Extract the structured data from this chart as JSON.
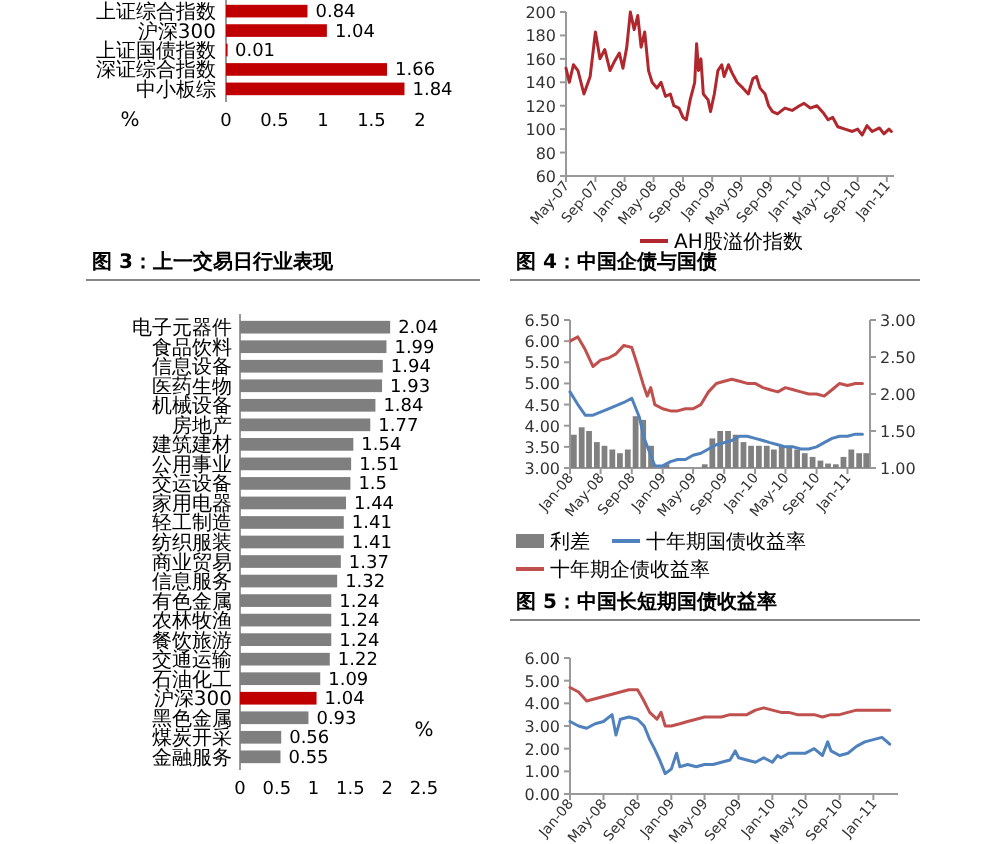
{
  "chart_data": [
    {
      "type": "bar",
      "orientation": "horizontal",
      "categories": [
        "上证综合指数",
        "沪深300",
        "上证国债指数",
        "深证综合指数",
        "中小板综"
      ],
      "values": [
        0.84,
        1.04,
        0.01,
        1.66,
        1.84
      ],
      "color": "#c00000",
      "xlim": [
        0,
        2
      ],
      "xticks": [
        0,
        0.5,
        1,
        1.5,
        2
      ],
      "xlabel": "%",
      "data_labels": true
    },
    {
      "type": "line",
      "xlim": [
        "2007-05-01",
        "2011-01-31"
      ],
      "xticks": [
        {
          "value": "2007-05",
          "label": "May-07"
        },
        {
          "value": "2007-09",
          "label": "Sep-07"
        },
        {
          "value": "2008-01",
          "label": "Jan-08"
        },
        {
          "value": "2008-05",
          "label": "May-08"
        },
        {
          "value": "2008-09",
          "label": "Sep-08"
        },
        {
          "value": "2009-01",
          "label": "Jan-09"
        },
        {
          "value": "2009-05",
          "label": "May-09"
        },
        {
          "value": "2009-09",
          "label": "Sep-09"
        },
        {
          "value": "2010-01",
          "label": "Jan-10"
        },
        {
          "value": "2010-05",
          "label": "May-10"
        },
        {
          "value": "2010-09",
          "label": "Sep-10"
        },
        {
          "value": "2011-01",
          "label": "Jan-11"
        }
      ],
      "ylim": [
        60,
        200
      ],
      "yticks": [
        60,
        80,
        100,
        120,
        140,
        160,
        180,
        200
      ],
      "legend": "bottom",
      "series": [
        {
          "name": "AH股溢价指数",
          "color": "#b0282e",
          "x": [
            "2007-05-01",
            "2007-05-15",
            "2007-06-01",
            "2007-06-20",
            "2007-07-15",
            "2007-08-10",
            "2007-09-01",
            "2007-09-20",
            "2007-10-10",
            "2007-11-01",
            "2007-11-20",
            "2007-12-10",
            "2007-12-25",
            "2008-01-10",
            "2008-01-25",
            "2008-02-10",
            "2008-02-25",
            "2008-03-10",
            "2008-03-25",
            "2008-04-10",
            "2008-04-25",
            "2008-05-15",
            "2008-06-01",
            "2008-06-20",
            "2008-07-10",
            "2008-07-25",
            "2008-08-15",
            "2008-09-01",
            "2008-09-15",
            "2008-10-01",
            "2008-10-20",
            "2008-10-28",
            "2008-11-05",
            "2008-11-15",
            "2008-11-25",
            "2008-12-15",
            "2008-12-25",
            "2009-01-10",
            "2009-01-25",
            "2009-02-10",
            "2009-02-20",
            "2009-03-10",
            "2009-03-25",
            "2009-04-15",
            "2009-05-10",
            "2009-06-01",
            "2009-06-20",
            "2009-07-05",
            "2009-07-20",
            "2009-08-10",
            "2009-08-25",
            "2009-09-10",
            "2009-10-01",
            "2009-11-01",
            "2009-12-01",
            "2010-01-01",
            "2010-01-20",
            "2010-02-15",
            "2010-03-15",
            "2010-04-10",
            "2010-05-01",
            "2010-05-20",
            "2010-06-10",
            "2010-07-10",
            "2010-08-10",
            "2010-09-01",
            "2010-09-20",
            "2010-10-10",
            "2010-11-01",
            "2010-12-01",
            "2010-12-20",
            "2011-01-10",
            "2011-01-20"
          ],
          "values": [
            152,
            140,
            155,
            150,
            130,
            145,
            183,
            160,
            168,
            150,
            158,
            165,
            152,
            170,
            200,
            185,
            197,
            170,
            183,
            150,
            140,
            135,
            140,
            128,
            130,
            120,
            118,
            110,
            108,
            125,
            140,
            173,
            150,
            160,
            130,
            125,
            115,
            130,
            150,
            155,
            145,
            155,
            148,
            140,
            135,
            130,
            143,
            145,
            135,
            130,
            120,
            115,
            113,
            118,
            116,
            120,
            122,
            118,
            120,
            114,
            108,
            110,
            102,
            100,
            98,
            100,
            95,
            103,
            98,
            101,
            96,
            100,
            98
          ]
        }
      ]
    },
    {
      "type": "bar",
      "orientation": "horizontal",
      "title": "图 3：上一交易日行业表现",
      "categories": [
        "电子元器件",
        "食品饮料",
        "信息设备",
        "医药生物",
        "机械设备",
        "房地产",
        "建筑建材",
        "公用事业",
        "交运设备",
        "家用电器",
        "轻工制造",
        "纺织服装",
        "商业贸易",
        "信息服务",
        "有色金属",
        "农林牧渔",
        "餐饮旅游",
        "交通运输",
        "石油化工",
        "沪深300",
        "黑色金属",
        "煤炭开采",
        "金融服务"
      ],
      "values": [
        2.04,
        1.99,
        1.94,
        1.93,
        1.84,
        1.77,
        1.54,
        1.51,
        1.5,
        1.44,
        1.41,
        1.41,
        1.37,
        1.32,
        1.24,
        1.24,
        1.24,
        1.22,
        1.09,
        1.04,
        0.93,
        0.56,
        0.55
      ],
      "colors": [
        "#7f7f7f",
        "#7f7f7f",
        "#7f7f7f",
        "#7f7f7f",
        "#7f7f7f",
        "#7f7f7f",
        "#7f7f7f",
        "#7f7f7f",
        "#7f7f7f",
        "#7f7f7f",
        "#7f7f7f",
        "#7f7f7f",
        "#7f7f7f",
        "#7f7f7f",
        "#7f7f7f",
        "#7f7f7f",
        "#7f7f7f",
        "#7f7f7f",
        "#7f7f7f",
        "#c00000",
        "#7f7f7f",
        "#7f7f7f",
        "#7f7f7f"
      ],
      "xlim": [
        0,
        2.5
      ],
      "xticks": [
        0,
        0.5,
        1,
        1.5,
        2,
        2.5
      ],
      "xlabel": "%",
      "data_labels": true
    },
    {
      "type": "line",
      "title": "图 4：中国企债与国债",
      "xlim": [
        "2008-01-01",
        "2011-03-31"
      ],
      "xticks": [
        {
          "value": "2008-01",
          "label": "Jan-08"
        },
        {
          "value": "2008-05",
          "label": "May-08"
        },
        {
          "value": "2008-09",
          "label": "Sep-08"
        },
        {
          "value": "2009-01",
          "label": "Jan-09"
        },
        {
          "value": "2009-05",
          "label": "May-09"
        },
        {
          "value": "2009-09",
          "label": "Sep-09"
        },
        {
          "value": "2010-01",
          "label": "Jan-10"
        },
        {
          "value": "2010-05",
          "label": "May-10"
        },
        {
          "value": "2010-09",
          "label": "Sep-10"
        },
        {
          "value": "2011-01",
          "label": "Jan-11"
        }
      ],
      "ylim": [
        3,
        6.5
      ],
      "yticks": [
        {
          "value": 3,
          "label": "3.00"
        },
        {
          "value": 3.5,
          "label": "3.50"
        },
        {
          "value": 4,
          "label": "4.00"
        },
        {
          "value": 4.5,
          "label": "4.50"
        },
        {
          "value": 5,
          "label": "5.00"
        },
        {
          "value": 5.5,
          "label": "5.50"
        },
        {
          "value": 6,
          "label": "6.00"
        },
        {
          "value": 6.5,
          "label": "6.50"
        }
      ],
      "y2lim": [
        1,
        3
      ],
      "y2ticks": [
        {
          "value": 1,
          "label": "1.00"
        },
        {
          "value": 1.5,
          "label": "1.50"
        },
        {
          "value": 2,
          "label": "2.00"
        },
        {
          "value": 2.5,
          "label": "2.50"
        },
        {
          "value": 3,
          "label": "3.00"
        }
      ],
      "legend": "bottom",
      "series": [
        {
          "name": "利差",
          "type": "bar",
          "axis": "y2",
          "color": "#808080",
          "x": [
            "2008-01",
            "2008-02",
            "2008-03",
            "2008-04",
            "2008-05",
            "2008-06",
            "2008-07",
            "2008-08",
            "2008-09",
            "2008-10",
            "2008-11",
            "2008-12",
            "2009-01",
            "2009-02",
            "2009-03",
            "2009-04",
            "2009-05",
            "2009-06",
            "2009-07",
            "2009-08",
            "2009-09",
            "2009-10",
            "2009-11",
            "2009-12",
            "2010-01",
            "2010-02",
            "2010-03",
            "2010-04",
            "2010-05",
            "2010-06",
            "2010-07",
            "2010-08",
            "2010-09",
            "2010-10",
            "2010-11",
            "2010-12",
            "2011-01",
            "2011-02",
            "2011-03"
          ],
          "values": [
            1.45,
            1.55,
            1.5,
            1.35,
            1.3,
            1.25,
            1.2,
            1.25,
            1.7,
            1.65,
            1.3,
            null,
            1.05,
            null,
            null,
            null,
            null,
            1.05,
            1.4,
            1.5,
            1.5,
            1.45,
            1.35,
            1.3,
            1.3,
            1.3,
            1.25,
            1.3,
            1.3,
            1.25,
            1.2,
            1.15,
            1.1,
            1.06,
            1.05,
            1.15,
            1.25,
            1.2,
            1.2
          ]
        },
        {
          "name": "十年期国债收益率",
          "color": "#4f81bd",
          "x": [
            "2008-01-01",
            "2008-02-01",
            "2008-03-01",
            "2008-04-01",
            "2008-06-01",
            "2008-08-01",
            "2008-09-01",
            "2008-10-01",
            "2008-10-20",
            "2008-11-15",
            "2008-12-01",
            "2009-01-01",
            "2009-02-01",
            "2009-03-01",
            "2009-04-01",
            "2009-05-01",
            "2009-06-01",
            "2009-07-01",
            "2009-08-01",
            "2009-09-01",
            "2009-10-01",
            "2009-11-01",
            "2009-12-01",
            "2010-01-01",
            "2010-02-01",
            "2010-03-01",
            "2010-04-01",
            "2010-05-01",
            "2010-06-01",
            "2010-07-01",
            "2010-08-01",
            "2010-09-01",
            "2010-10-01",
            "2010-11-01",
            "2010-12-01",
            "2011-01-01",
            "2011-02-01",
            "2011-03-01"
          ],
          "values": [
            4.8,
            4.5,
            4.25,
            4.25,
            4.4,
            4.55,
            4.65,
            4.2,
            3.7,
            3.3,
            3.05,
            3.05,
            3.15,
            3.2,
            3.2,
            3.3,
            3.35,
            3.45,
            3.55,
            3.6,
            3.65,
            3.75,
            3.75,
            3.7,
            3.65,
            3.6,
            3.55,
            3.5,
            3.5,
            3.45,
            3.45,
            3.5,
            3.6,
            3.7,
            3.75,
            3.75,
            3.8,
            3.8
          ]
        },
        {
          "name": "十年期企债收益率",
          "color": "#c0504d",
          "x": [
            "2008-01-01",
            "2008-02-01",
            "2008-03-01",
            "2008-04-01",
            "2008-05-01",
            "2008-06-01",
            "2008-07-01",
            "2008-08-01",
            "2008-09-01",
            "2008-09-20",
            "2008-10-15",
            "2008-11-01",
            "2008-11-15",
            "2008-12-01",
            "2009-01-01",
            "2009-02-01",
            "2009-03-01",
            "2009-04-01",
            "2009-05-01",
            "2009-06-01",
            "2009-07-01",
            "2009-08-01",
            "2009-09-01",
            "2009-10-01",
            "2009-11-01",
            "2009-12-01",
            "2010-01-01",
            "2010-02-01",
            "2010-03-01",
            "2010-04-01",
            "2010-05-01",
            "2010-06-01",
            "2010-07-01",
            "2010-08-01",
            "2010-09-01",
            "2010-10-01",
            "2010-11-01",
            "2010-12-01",
            "2011-01-01",
            "2011-02-01",
            "2011-03-01"
          ],
          "values": [
            6.0,
            6.1,
            5.8,
            5.4,
            5.55,
            5.6,
            5.7,
            5.9,
            5.85,
            5.5,
            5.0,
            4.7,
            4.9,
            4.5,
            4.4,
            4.35,
            4.35,
            4.4,
            4.4,
            4.5,
            4.8,
            5.0,
            5.05,
            5.1,
            5.05,
            5.0,
            5.0,
            4.9,
            4.85,
            4.8,
            4.9,
            4.85,
            4.8,
            4.75,
            4.75,
            4.7,
            4.85,
            5.0,
            4.95,
            5.0,
            5.0
          ]
        }
      ]
    },
    {
      "type": "line",
      "title": "图 5：中国长短期国债收益率",
      "xlim": [
        "2008-01-01",
        "2011-03-31"
      ],
      "xticks": [
        {
          "value": "2008-01",
          "label": "Jan-08"
        },
        {
          "value": "2008-05",
          "label": "May-08"
        },
        {
          "value": "2008-09",
          "label": "Sep-08"
        },
        {
          "value": "2009-01",
          "label": "Jan-09"
        },
        {
          "value": "2009-05",
          "label": "May-09"
        },
        {
          "value": "2009-09",
          "label": "Sep-09"
        },
        {
          "value": "2010-01",
          "label": "Jan-10"
        },
        {
          "value": "2010-05",
          "label": "May-10"
        },
        {
          "value": "2010-09",
          "label": "Sep-10"
        },
        {
          "value": "2011-01",
          "label": "Jan-11"
        }
      ],
      "ylim": [
        0,
        6
      ],
      "yticks": [
        {
          "value": 0,
          "label": "0.00"
        },
        {
          "value": 1,
          "label": "1.00"
        },
        {
          "value": 2,
          "label": "2.00"
        },
        {
          "value": 3,
          "label": "3.00"
        },
        {
          "value": 4,
          "label": "4.00"
        },
        {
          "value": 5,
          "label": "5.00"
        },
        {
          "value": 6,
          "label": "6.00"
        }
      ],
      "series": [
        {
          "color": "#c0504d",
          "x": [
            "2008-01-01",
            "2008-02-01",
            "2008-03-01",
            "2008-04-01",
            "2008-05-01",
            "2008-06-01",
            "2008-07-01",
            "2008-08-01",
            "2008-09-01",
            "2008-09-20",
            "2008-10-15",
            "2008-11-10",
            "2008-11-25",
            "2008-12-10",
            "2009-01-01",
            "2009-02-01",
            "2009-03-01",
            "2009-04-01",
            "2009-05-01",
            "2009-06-01",
            "2009-07-01",
            "2009-08-01",
            "2009-09-01",
            "2009-10-01",
            "2009-11-01",
            "2009-12-01",
            "2010-01-01",
            "2010-02-01",
            "2010-03-01",
            "2010-04-01",
            "2010-05-01",
            "2010-06-01",
            "2010-07-01",
            "2010-08-01",
            "2010-09-01",
            "2010-10-01",
            "2010-11-01",
            "2010-12-01",
            "2011-01-01",
            "2011-02-01",
            "2011-03-01"
          ],
          "values": [
            4.7,
            4.5,
            4.1,
            4.2,
            4.3,
            4.4,
            4.5,
            4.6,
            4.6,
            4.2,
            3.6,
            3.3,
            3.6,
            3.0,
            3.0,
            3.1,
            3.2,
            3.3,
            3.4,
            3.4,
            3.4,
            3.5,
            3.5,
            3.5,
            3.7,
            3.8,
            3.7,
            3.6,
            3.6,
            3.5,
            3.5,
            3.5,
            3.4,
            3.5,
            3.5,
            3.6,
            3.7,
            3.7,
            3.7,
            3.7,
            3.7
          ]
        },
        {
          "color": "#4f81bd",
          "x": [
            "2008-01-01",
            "2008-02-01",
            "2008-03-01",
            "2008-04-01",
            "2008-05-01",
            "2008-06-01",
            "2008-06-15",
            "2008-07-01",
            "2008-08-01",
            "2008-09-01",
            "2008-09-25",
            "2008-10-15",
            "2008-11-01",
            "2008-11-20",
            "2008-12-10",
            "2009-01-01",
            "2009-01-20",
            "2009-02-01",
            "2009-03-01",
            "2009-04-01",
            "2009-05-01",
            "2009-06-01",
            "2009-07-01",
            "2009-08-01",
            "2009-08-20",
            "2009-09-01",
            "2009-10-01",
            "2009-11-01",
            "2009-12-01",
            "2010-01-01",
            "2010-01-20",
            "2010-02-01",
            "2010-03-01",
            "2010-04-01",
            "2010-05-01",
            "2010-06-01",
            "2010-07-01",
            "2010-07-20",
            "2010-08-01",
            "2010-09-01",
            "2010-10-01",
            "2010-11-01",
            "2010-12-01",
            "2011-01-01",
            "2011-02-01",
            "2011-02-20",
            "2011-03-01"
          ],
          "values": [
            3.2,
            3.0,
            2.9,
            3.1,
            3.2,
            3.5,
            2.6,
            3.3,
            3.4,
            3.3,
            3.0,
            2.4,
            2.0,
            1.5,
            0.9,
            1.1,
            1.8,
            1.2,
            1.3,
            1.2,
            1.3,
            1.3,
            1.4,
            1.5,
            1.9,
            1.6,
            1.5,
            1.4,
            1.6,
            1.4,
            1.7,
            1.6,
            1.8,
            1.8,
            1.8,
            2.0,
            1.7,
            2.3,
            1.9,
            1.7,
            1.8,
            2.1,
            2.3,
            2.4,
            2.5,
            2.3,
            2.2
          ]
        }
      ]
    }
  ]
}
